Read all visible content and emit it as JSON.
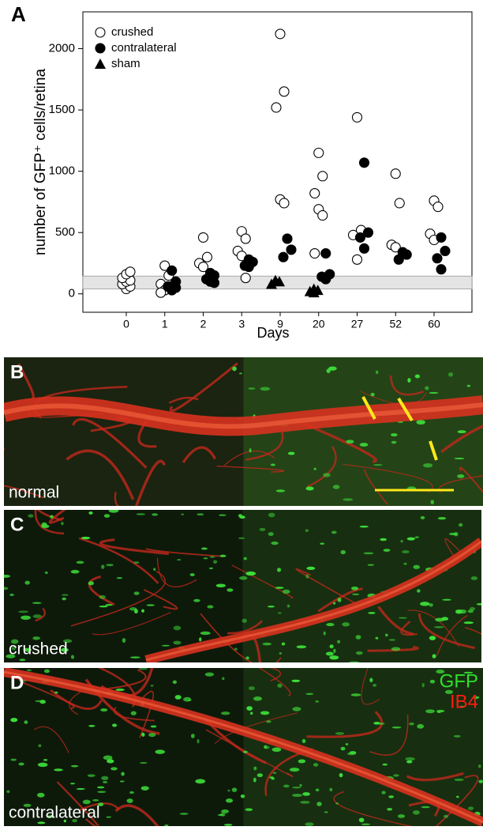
{
  "chart_data": {
    "type": "scatter",
    "panel_label": "A",
    "ylabel": "number of GFP⁺ cells/retina",
    "xlabel": "Days",
    "categories": [
      "0",
      "1",
      "2",
      "3",
      "9",
      "20",
      "27",
      "52",
      "60"
    ],
    "ylim": [
      -150,
      2300
    ],
    "yticks": [
      0,
      500,
      1000,
      1500,
      2000
    ],
    "reference_band": [
      40,
      145
    ],
    "legend": "upper left",
    "series": [
      {
        "name": "crushed",
        "marker": "open-circle",
        "x": [
          "0",
          "0",
          "0",
          "0",
          "0",
          "0",
          "0",
          "0",
          "1",
          "1",
          "1",
          "1",
          "1",
          "1",
          "2",
          "2",
          "2",
          "2",
          "3",
          "3",
          "3",
          "3",
          "3",
          "9",
          "9",
          "9",
          "9",
          "9",
          "20",
          "20",
          "20",
          "20",
          "20",
          "20",
          "27",
          "27",
          "27",
          "27",
          "52",
          "52",
          "52",
          "52",
          "60",
          "60",
          "60",
          "60"
        ],
        "values": [
          40,
          60,
          80,
          100,
          110,
          130,
          160,
          180,
          230,
          150,
          80,
          30,
          60,
          10,
          460,
          300,
          250,
          220,
          510,
          450,
          350,
          310,
          130,
          2120,
          1650,
          1520,
          770,
          740,
          1150,
          960,
          820,
          690,
          640,
          330,
          1440,
          520,
          480,
          280,
          980,
          740,
          400,
          380,
          760,
          710,
          490,
          440
        ]
      },
      {
        "name": "contralateral",
        "marker": "filled-circle",
        "x": [
          "1",
          "1",
          "1",
          "1",
          "1",
          "2",
          "2",
          "2",
          "2",
          "2",
          "3",
          "3",
          "3",
          "3",
          "9",
          "9",
          "9",
          "20",
          "20",
          "20",
          "20",
          "27",
          "27",
          "27",
          "27",
          "52",
          "52",
          "52",
          "60",
          "60",
          "60",
          "60"
        ],
        "values": [
          190,
          100,
          60,
          30,
          50,
          170,
          150,
          120,
          100,
          90,
          280,
          260,
          230,
          220,
          450,
          360,
          300,
          330,
          160,
          140,
          120,
          1070,
          500,
          460,
          370,
          340,
          320,
          280,
          460,
          350,
          290,
          200
        ]
      },
      {
        "name": "sham",
        "marker": "triangle",
        "x": [
          "9",
          "9",
          "9",
          "20",
          "20",
          "20",
          "20"
        ],
        "values": [
          110,
          100,
          80,
          40,
          30,
          20,
          10
        ]
      }
    ]
  },
  "images": [
    {
      "panel_label": "B",
      "caption": "normal"
    },
    {
      "panel_label": "C",
      "caption": "crushed"
    },
    {
      "panel_label": "D",
      "caption": "contralateral",
      "stain_legend": [
        "GFP",
        "IB4"
      ]
    }
  ]
}
